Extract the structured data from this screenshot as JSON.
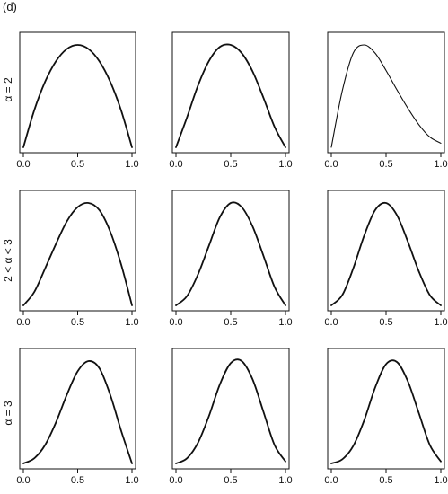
{
  "figure": {
    "panel_tag": "(d)"
  },
  "chart_data": {
    "type": "line",
    "grid": false,
    "rows": [
      {
        "label": "α = 2"
      },
      {
        "label": "2 < α < 3"
      },
      {
        "label": "α = 3"
      }
    ],
    "xticks": [
      "0.0",
      "0.5",
      "1.0"
    ],
    "xlim": [
      0,
      1
    ],
    "panels": [
      {
        "row": 0,
        "col": 0,
        "x": [
          0,
          0.1,
          0.2,
          0.3,
          0.4,
          0.5,
          0.6,
          0.7,
          0.8,
          0.9,
          1.0
        ],
        "y": [
          0,
          0.36,
          0.64,
          0.84,
          0.96,
          1.0,
          0.96,
          0.84,
          0.64,
          0.36,
          0
        ]
      },
      {
        "row": 0,
        "col": 1,
        "x": [
          0,
          0.1,
          0.2,
          0.3,
          0.4,
          0.5,
          0.6,
          0.7,
          0.8,
          0.9,
          1.0
        ],
        "y": [
          0,
          0.29,
          0.6,
          0.84,
          0.98,
          1.0,
          0.92,
          0.74,
          0.48,
          0.2,
          0
        ]
      },
      {
        "row": 0,
        "col": 2,
        "x": [
          0,
          0.1,
          0.2,
          0.3,
          0.4,
          0.5,
          0.6,
          0.7,
          0.8,
          0.9,
          1.0
        ],
        "y": [
          0,
          0.55,
          0.92,
          1.0,
          0.92,
          0.75,
          0.56,
          0.38,
          0.22,
          0.1,
          0.04
        ]
      },
      {
        "row": 1,
        "col": 0,
        "x": [
          0,
          0.1,
          0.2,
          0.3,
          0.4,
          0.5,
          0.6,
          0.7,
          0.8,
          0.9,
          1.0
        ],
        "y": [
          0,
          0.13,
          0.36,
          0.6,
          0.82,
          0.96,
          1.0,
          0.93,
          0.72,
          0.4,
          0
        ]
      },
      {
        "row": 1,
        "col": 1,
        "x": [
          0,
          0.1,
          0.2,
          0.3,
          0.4,
          0.5,
          0.6,
          0.7,
          0.8,
          0.9,
          1.0
        ],
        "y": [
          0,
          0.09,
          0.3,
          0.58,
          0.86,
          1.0,
          0.96,
          0.77,
          0.48,
          0.18,
          0
        ]
      },
      {
        "row": 1,
        "col": 2,
        "x": [
          0,
          0.1,
          0.2,
          0.3,
          0.4,
          0.5,
          0.6,
          0.7,
          0.8,
          0.9,
          1.0
        ],
        "y": [
          0,
          0.1,
          0.36,
          0.68,
          0.93,
          1.0,
          0.88,
          0.62,
          0.33,
          0.1,
          0
        ]
      },
      {
        "row": 2,
        "col": 0,
        "x": [
          0,
          0.1,
          0.2,
          0.3,
          0.4,
          0.5,
          0.6,
          0.7,
          0.8,
          0.9,
          1.0
        ],
        "y": [
          0,
          0.05,
          0.18,
          0.4,
          0.67,
          0.9,
          1.0,
          0.93,
          0.67,
          0.32,
          0
        ]
      },
      {
        "row": 2,
        "col": 1,
        "x": [
          0,
          0.1,
          0.2,
          0.3,
          0.4,
          0.5,
          0.6,
          0.7,
          0.8,
          0.9,
          1.0
        ],
        "y": [
          0,
          0.05,
          0.2,
          0.46,
          0.77,
          0.98,
          1.0,
          0.82,
          0.5,
          0.18,
          0.02
        ]
      },
      {
        "row": 2,
        "col": 2,
        "x": [
          0,
          0.1,
          0.2,
          0.3,
          0.4,
          0.5,
          0.6,
          0.7,
          0.8,
          0.9,
          1.0
        ],
        "y": [
          0,
          0.04,
          0.17,
          0.42,
          0.74,
          0.97,
          0.99,
          0.8,
          0.49,
          0.18,
          0.02
        ]
      }
    ]
  }
}
